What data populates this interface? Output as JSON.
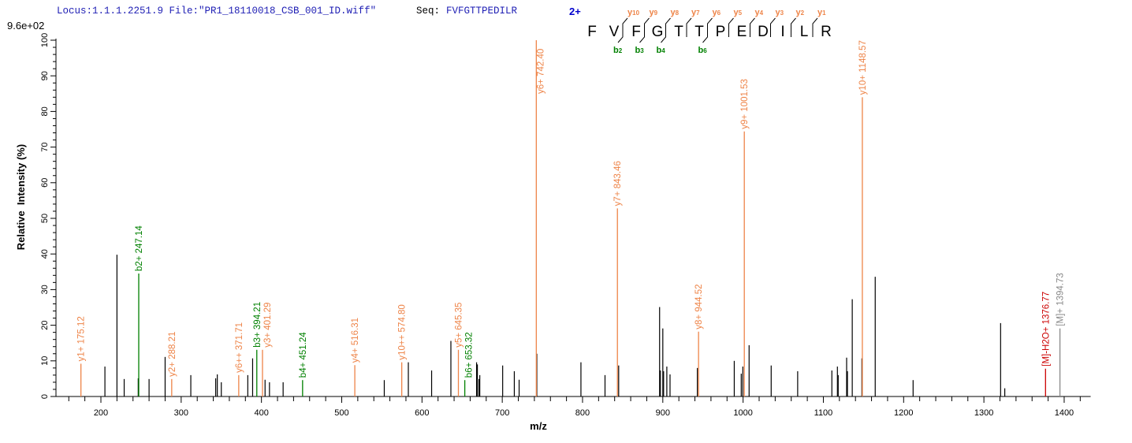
{
  "header": {
    "locus_file": "Locus:1.1.1.2251.9 File:\"PR1_18110018_CSB_001_ID.wiff\"",
    "seq_label": "Seq:",
    "seq_value": "FVFGTTPEDILR",
    "charge": "2+",
    "scale_max": "9.6e+02"
  },
  "sequence_map": {
    "residues": [
      "F",
      "V",
      "F",
      "G",
      "T",
      "T",
      "P",
      "E",
      "D",
      "I",
      "L",
      "R"
    ],
    "y_ions": [
      {
        "label": "y10",
        "gap": 2
      },
      {
        "label": "y9",
        "gap": 3
      },
      {
        "label": "y8",
        "gap": 4
      },
      {
        "label": "y7",
        "gap": 5
      },
      {
        "label": "y6",
        "gap": 6
      },
      {
        "label": "y5",
        "gap": 7
      },
      {
        "label": "y4",
        "gap": 8
      },
      {
        "label": "y3",
        "gap": 9
      },
      {
        "label": "y2",
        "gap": 10
      },
      {
        "label": "y1",
        "gap": 11
      }
    ],
    "b_ions": [
      {
        "label": "b2",
        "gap": 2
      },
      {
        "label": "b3",
        "gap": 3
      },
      {
        "label": "b4",
        "gap": 4
      },
      {
        "label": "b6",
        "gap": 6
      }
    ]
  },
  "colors": {
    "y_ion": "#EE8448",
    "b_ion": "#008000",
    "precursor_loss": "#CC0000",
    "precursor": "#888888",
    "unmatched": "#000000",
    "header_blue": "#1E1EB4",
    "charge_blue": "#0000CC"
  },
  "chart_data": {
    "type": "bar",
    "title": "",
    "xlabel": "m/z",
    "ylabel": "Relative  Intensity (%)",
    "xlim": [
      143,
      1433
    ],
    "ylim": [
      0,
      100
    ],
    "x_ticks": [
      200,
      300,
      400,
      500,
      600,
      700,
      800,
      900,
      1000,
      1100,
      1200,
      1300,
      1400
    ],
    "y_ticks": [
      0,
      10,
      20,
      30,
      40,
      50,
      60,
      70,
      80,
      90,
      100
    ],
    "grid": false,
    "annotated_peaks": [
      {
        "mz": 175.12,
        "intensity": 9.2,
        "type": "y_ion",
        "label": "y1+ 175.12"
      },
      {
        "mz": 247.14,
        "intensity": 34.5,
        "type": "b_ion",
        "label": "b2+ 247.14"
      },
      {
        "mz": 288.21,
        "intensity": 4.9,
        "type": "y_ion",
        "label": "y2+ 288.21"
      },
      {
        "mz": 371.71,
        "intensity": 6.0,
        "type": "y_ion",
        "label": "y6++ 371.71"
      },
      {
        "mz": 394.21,
        "intensity": 13.1,
        "type": "b_ion",
        "label": "b3+ 394.21"
      },
      {
        "mz": 401.29,
        "intensity": 13.1,
        "type": "y_ion",
        "label": "y3+ 401.29"
      },
      {
        "mz": 451.24,
        "intensity": 4.6,
        "type": "b_ion",
        "label": "b4+ 451.24"
      },
      {
        "mz": 516.31,
        "intensity": 8.8,
        "type": "y_ion",
        "label": "y4+ 516.31"
      },
      {
        "mz": 574.8,
        "intensity": 9.6,
        "type": "y_ion",
        "label": "y10++ 574.80"
      },
      {
        "mz": 645.35,
        "intensity": 13.1,
        "type": "y_ion",
        "label": "y5+ 645.35"
      },
      {
        "mz": 653.32,
        "intensity": 4.6,
        "type": "b_ion",
        "label": "b6+ 653.32"
      },
      {
        "mz": 742.4,
        "intensity": 100,
        "type": "y_ion",
        "label": "y6+ 742.40"
      },
      {
        "mz": 843.46,
        "intensity": 52.8,
        "type": "y_ion",
        "label": "y7+ 843.46"
      },
      {
        "mz": 944.52,
        "intensity": 18.2,
        "type": "y_ion",
        "label": "y8+ 944.52"
      },
      {
        "mz": 1001.53,
        "intensity": 74.4,
        "type": "y_ion",
        "label": "y9+ 1001.53"
      },
      {
        "mz": 1148.57,
        "intensity": 84.0,
        "type": "y_ion",
        "label": "y10+ 1148.57"
      },
      {
        "mz": 1376.77,
        "intensity": 7.8,
        "type": "precursor_loss",
        "label": "[M]-H2O+ 1376.77"
      },
      {
        "mz": 1394.73,
        "intensity": 19.1,
        "type": "precursor",
        "label": "[M]+ 1394.73"
      }
    ],
    "unannotated_peaks": [
      [
        205,
        8.4
      ],
      [
        220,
        39.8
      ],
      [
        229,
        4.9
      ],
      [
        246.5,
        5.1
      ],
      [
        260,
        4.9
      ],
      [
        280,
        11.1
      ],
      [
        312,
        6.0
      ],
      [
        343,
        5.1
      ],
      [
        345,
        6.2
      ],
      [
        350,
        4.0
      ],
      [
        383,
        6.0
      ],
      [
        389,
        10.7
      ],
      [
        404.5,
        4.7
      ],
      [
        410,
        4.0
      ],
      [
        427,
        4.0
      ],
      [
        553,
        4.6
      ],
      [
        583,
        9.6
      ],
      [
        612,
        7.3
      ],
      [
        636,
        15.6
      ],
      [
        668,
        9.6
      ],
      [
        669,
        9.0
      ],
      [
        671,
        4.9
      ],
      [
        672,
        6.0
      ],
      [
        700.5,
        8.7
      ],
      [
        715,
        7.1
      ],
      [
        721,
        4.7
      ],
      [
        743,
        12.0
      ],
      [
        798,
        9.6
      ],
      [
        828,
        6.0
      ],
      [
        845,
        8.7
      ],
      [
        896,
        25.1
      ],
      [
        897,
        7.3
      ],
      [
        900,
        19.1
      ],
      [
        901,
        7.1
      ],
      [
        905,
        8.4
      ],
      [
        909,
        6.2
      ],
      [
        943,
        8.0
      ],
      [
        989,
        10.0
      ],
      [
        997.7,
        6.4
      ],
      [
        999.7,
        8.4
      ],
      [
        1007.5,
        14.4
      ],
      [
        1035,
        8.7
      ],
      [
        1068,
        7.1
      ],
      [
        1110.6,
        7.3
      ],
      [
        1117.5,
        8.4
      ],
      [
        1118.5,
        6.0
      ],
      [
        1129,
        10.9
      ],
      [
        1130,
        7.1
      ],
      [
        1136,
        27.3
      ],
      [
        1148,
        10.7
      ],
      [
        1164.6,
        33.6
      ],
      [
        1211.8,
        4.6
      ],
      [
        1320.8,
        20.6
      ],
      [
        1326,
        2.3
      ]
    ]
  }
}
